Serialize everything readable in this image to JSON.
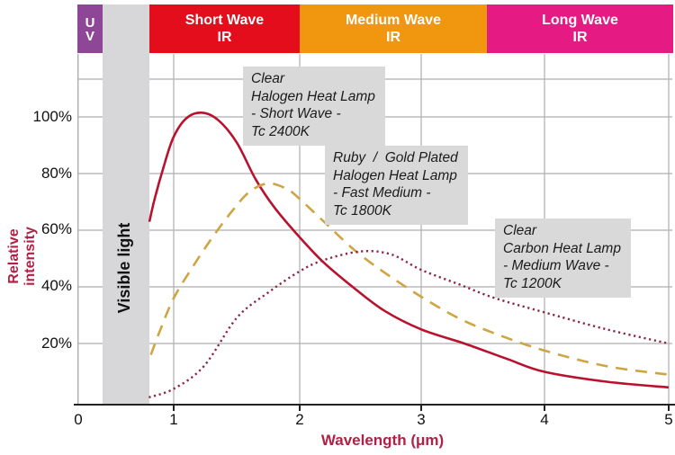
{
  "spectrum_bands": {
    "uv": {
      "line1": "U",
      "line2": "V",
      "color": "#8e4796"
    },
    "visible": {
      "label": "Visible light",
      "color": "#d7d6d8"
    },
    "short_wave": {
      "line1": "Short Wave",
      "line2": "IR",
      "color": "#e30d1c"
    },
    "medium_wave": {
      "line1": "Medium Wave",
      "line2": "IR",
      "color": "#f0960f"
    },
    "long_wave": {
      "line1": "Long Wave",
      "line2": "IR",
      "color": "#e51a82"
    }
  },
  "axes": {
    "y_title": "Relative intensity",
    "x_title": "Wavelength (μm)",
    "title_color": "#b32045",
    "y_ticks": [
      "100%",
      "80%",
      "60%",
      "40%",
      "20%"
    ],
    "x_ticks": [
      "0",
      "1",
      "2",
      "3",
      "4",
      "5"
    ]
  },
  "annotations": [
    {
      "lines": [
        "Clear",
        "Halogen Heat Lamp",
        "- Short Wave -",
        "Tc 2400K"
      ]
    },
    {
      "lines": [
        "Ruby  /  Gold Plated",
        "Halogen Heat Lamp",
        "- Fast Medium -",
        "Tc 1800K"
      ]
    },
    {
      "lines": [
        "Clear",
        "Carbon Heat Lamp",
        "- Medium Wave -",
        "Tc 1200K"
      ]
    }
  ],
  "chart_data": {
    "type": "line",
    "xlabel": "Wavelength (μm)",
    "ylabel": "Relative intensity (%)",
    "xlim": [
      0,
      5
    ],
    "ylim": [
      0,
      113
    ],
    "x_gridlines_um": [
      1,
      2,
      3,
      4,
      5
    ],
    "y_gridlines_pct": [
      20,
      40,
      60,
      80,
      100
    ],
    "grid_color": "#adadad",
    "series": [
      {
        "name": "Clear Halogen Heat Lamp - Short Wave - Tc 2400K",
        "style": "solid",
        "color": "#b8122f",
        "points": [
          [
            0.745,
            63
          ],
          [
            0.8,
            71
          ],
          [
            0.9,
            83
          ],
          [
            1.0,
            93
          ],
          [
            1.1,
            99.5
          ],
          [
            1.22,
            101.5
          ],
          [
            1.35,
            99
          ],
          [
            1.5,
            91
          ],
          [
            1.65,
            78
          ],
          [
            1.8,
            68
          ],
          [
            2.0,
            57.5
          ],
          [
            2.2,
            48.5
          ],
          [
            2.45,
            39.5
          ],
          [
            2.7,
            31.5
          ],
          [
            3.0,
            25
          ],
          [
            3.35,
            20
          ],
          [
            3.7,
            14.5
          ],
          [
            4.0,
            10
          ],
          [
            4.5,
            6.5
          ],
          [
            5.0,
            4.5
          ]
        ]
      },
      {
        "name": "Ruby / Gold Plated Halogen Heat Lamp - Fast Medium - Tc 1800K",
        "style": "dashed",
        "color": "#cfa544",
        "points": [
          [
            0.76,
            16
          ],
          [
            0.85,
            24
          ],
          [
            1.0,
            36
          ],
          [
            1.15,
            47
          ],
          [
            1.3,
            57
          ],
          [
            1.45,
            66
          ],
          [
            1.6,
            73.5
          ],
          [
            1.75,
            76.5
          ],
          [
            1.9,
            74.5
          ],
          [
            2.0,
            71
          ],
          [
            2.2,
            63
          ],
          [
            2.45,
            53
          ],
          [
            2.7,
            45
          ],
          [
            3.0,
            36.5
          ],
          [
            3.3,
            29
          ],
          [
            3.6,
            23.5
          ],
          [
            4.0,
            17.5
          ],
          [
            4.5,
            12
          ],
          [
            5.0,
            9
          ]
        ]
      },
      {
        "name": "Clear Carbon Heat Lamp - Medium Wave - Tc 1200K",
        "style": "dotted",
        "color": "#8c2742",
        "points": [
          [
            0.74,
            1
          ],
          [
            1.0,
            4
          ],
          [
            1.24,
            12
          ],
          [
            1.5,
            29
          ],
          [
            1.75,
            38
          ],
          [
            2.0,
            45.5
          ],
          [
            2.2,
            49.5
          ],
          [
            2.5,
            52.5
          ],
          [
            2.75,
            51.5
          ],
          [
            3.0,
            46
          ],
          [
            3.3,
            41
          ],
          [
            3.6,
            36
          ],
          [
            4.0,
            31
          ],
          [
            4.5,
            25
          ],
          [
            5.0,
            20
          ]
        ]
      }
    ]
  }
}
